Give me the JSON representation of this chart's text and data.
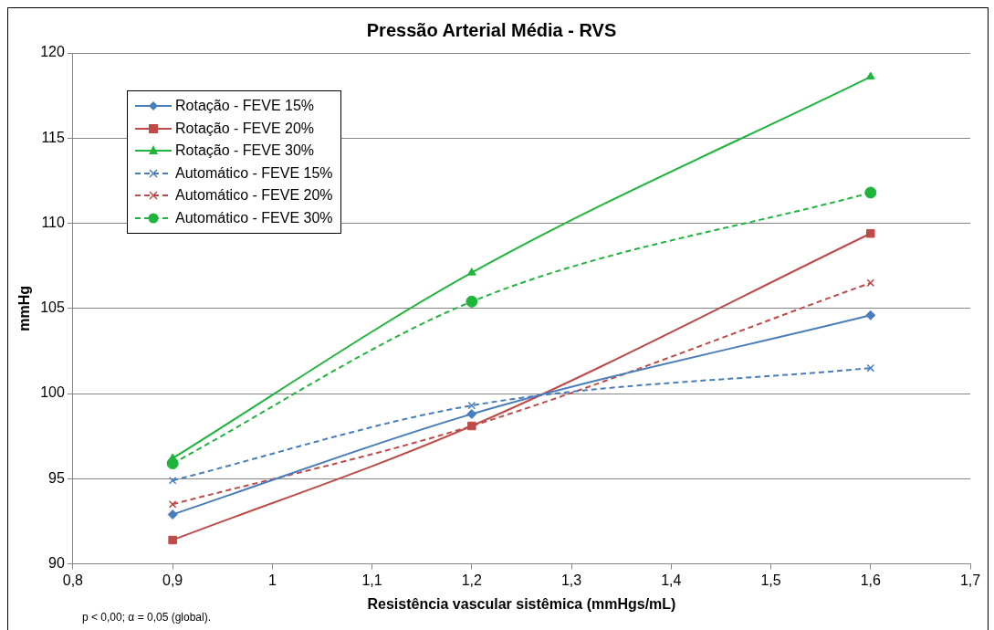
{
  "chart_data": {
    "type": "line",
    "title": "Pressão Arterial Média - RVS",
    "xlabel": "Resistência vascular sistêmica (mmHgs/mL)",
    "ylabel": "mmHg",
    "annotations": [
      "p < 0,00;  α = 0,05 (global)."
    ],
    "x": [
      0.9,
      1.2,
      1.6
    ],
    "xlim": [
      0.8,
      1.7
    ],
    "xticks": [
      {
        "value": 0.8,
        "label": "0,8"
      },
      {
        "value": 0.9,
        "label": "0,9"
      },
      1,
      {
        "value": 1.1,
        "label": "1,1"
      },
      {
        "value": 1.2,
        "label": "1,2"
      },
      {
        "value": 1.3,
        "label": "1,3"
      },
      {
        "value": 1.4,
        "label": "1,4"
      },
      {
        "value": 1.5,
        "label": "1,5"
      },
      {
        "value": 1.6,
        "label": "1,6"
      },
      {
        "value": 1.7,
        "label": "1,7"
      }
    ],
    "ylim": [
      90,
      120
    ],
    "yticks": [
      90,
      95,
      100,
      105,
      110,
      115,
      120
    ],
    "grid": "y",
    "legend": "top left",
    "series": [
      {
        "name": "Rotação - FEVE 15%",
        "color": "#4a7ebb",
        "marker": "diamond",
        "line_style": "solid",
        "values": [
          92.9,
          98.8,
          104.6
        ]
      },
      {
        "name": "Rotação - FEVE 20%",
        "color": "#be4b48",
        "marker": "square",
        "line_style": "solid",
        "values": [
          91.4,
          98.1,
          109.4
        ]
      },
      {
        "name": "Rotação - FEVE 30%",
        "color": "#1fb53c",
        "marker": "triangle",
        "line_style": "solid",
        "values": [
          96.2,
          107.1,
          118.6
        ]
      },
      {
        "name": "Automático - FEVE 15%",
        "color": "#4a7ebb",
        "marker": "cross",
        "line_style": "dashed",
        "values": [
          94.9,
          99.3,
          101.5
        ]
      },
      {
        "name": "Automático - FEVE 20%",
        "color": "#be4b48",
        "marker": "cross",
        "line_style": "dashed",
        "values": [
          93.5,
          98.1,
          106.5
        ]
      },
      {
        "name": "Automático - FEVE 30%",
        "color": "#1fb53c",
        "marker": "circle",
        "line_style": "dashed",
        "values": [
          95.9,
          105.4,
          111.8
        ]
      }
    ]
  }
}
